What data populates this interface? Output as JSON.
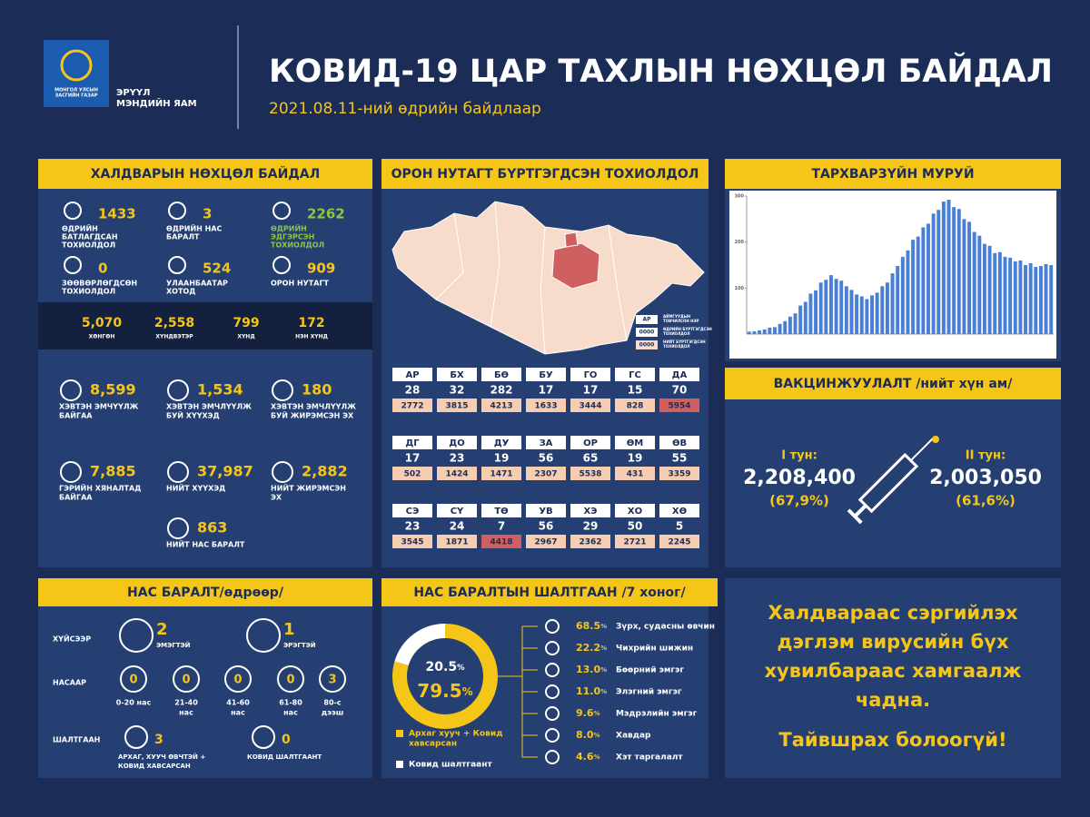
{
  "header": {
    "logo_text": [
      "МОНГОЛ УЛСЫН",
      "ЗАСГИЙН ГАЗАР"
    ],
    "ministry": [
      "ЭРҮҮЛ",
      "МЭНДИЙН ЯАМ"
    ],
    "title": "КОВИД-19 ЦАР ТАХЛЫН НӨХЦӨЛ БАЙДАЛ",
    "subtitle": "2021.08.11-ний өдрийн байдлаар"
  },
  "infection": {
    "title": "ХАЛДВАРЫН НӨХЦӨЛ БАЙДАЛ",
    "daily": [
      {
        "value": "1433",
        "label": [
          "ӨДРИЙН",
          "БАТЛАГДСАН",
          "ТОХИОЛДОЛ"
        ],
        "color": "#f5c518",
        "label_color": "#ffffff"
      },
      {
        "value": "3",
        "label": [
          "ӨДРИЙН НАС",
          "БАРАЛТ"
        ],
        "color": "#f5c518",
        "label_color": "#ffffff"
      },
      {
        "value": "2262",
        "label": [
          "ӨДРИЙН",
          "ЭДГЭРСЭН",
          "ТОХИОЛДОЛ"
        ],
        "color": "#8dc63f",
        "label_color": "#8dc63f"
      },
      {
        "value": "0",
        "label": [
          "ЗӨӨВӨРЛӨГДСӨН",
          "ТОХИОЛДОЛ"
        ],
        "color": "#f5c518",
        "label_color": "#ffffff"
      },
      {
        "value": "524",
        "label": [
          "УЛААНБААТАР",
          "ХОТОД"
        ],
        "color": "#f5c518",
        "label_color": "#ffffff"
      },
      {
        "value": "909",
        "label": [
          "ОРОН НУТАГТ"
        ],
        "color": "#f5c518",
        "label_color": "#ffffff"
      }
    ],
    "severity": [
      {
        "value": "5,070",
        "label": "ХӨНГӨН"
      },
      {
        "value": "2,558",
        "label": "ХҮНДВЭТЭР"
      },
      {
        "value": "799",
        "label": "ХҮНД"
      },
      {
        "value": "172",
        "label": "НЭН ХҮНД"
      }
    ],
    "care": [
      {
        "value": "8,599",
        "label": [
          "ХЭВТЭН ЭМЧҮҮЛЖ",
          "БАЙГАА"
        ]
      },
      {
        "value": "1,534",
        "label": [
          "ХЭВТЭН ЭМЧЛҮҮЛЖ",
          "БУЙ ХҮҮХЭД"
        ]
      },
      {
        "value": "180",
        "label": [
          "ХЭВТЭН ЭМЧЛҮҮЛЖ",
          "БУЙ ЖИРЭМСЭН ЭХ"
        ]
      },
      {
        "value": "7,885",
        "label": [
          "ГЭРИЙН ХЯНАЛТАД",
          "БАЙГАА"
        ]
      },
      {
        "value": "37,987",
        "label": [
          "НИЙТ ХҮҮХЭД"
        ]
      },
      {
        "value": "2,882",
        "label": [
          "НИЙТ ЖИРЭМСЭН",
          "ЭХ"
        ]
      },
      {
        "value": "863",
        "label": [
          "НИЙТ НАС БАРАЛТ"
        ]
      }
    ]
  },
  "regions": {
    "title": "ОРОН НУТАГТ БҮРТГЭГДСЭН ТОХИОЛДОЛ",
    "legend": [
      {
        "text": "АР",
        "label": [
          "АЙМГУУДЫН",
          "ТОВЧИЛСОН НЭР"
        ]
      },
      {
        "text": "0000",
        "label": [
          "ӨДРИЙН БҮРТГЭГДСЭН",
          "ТОХИОЛДОЛ"
        ]
      },
      {
        "text": "0000",
        "label": [
          "НИЙТ БҮРТГЭГДСЭН",
          "ТОХИОЛДОЛ"
        ]
      }
    ],
    "provinces": [
      {
        "code": "АР",
        "daily": "28",
        "total": "2772",
        "highlight": false
      },
      {
        "code": "БХ",
        "daily": "32",
        "total": "3815",
        "highlight": false
      },
      {
        "code": "БӨ",
        "daily": "282",
        "total": "4213",
        "highlight": false
      },
      {
        "code": "БУ",
        "daily": "17",
        "total": "1633",
        "highlight": false
      },
      {
        "code": "ГО",
        "daily": "17",
        "total": "3444",
        "highlight": false
      },
      {
        "code": "ГС",
        "daily": "15",
        "total": "828",
        "highlight": false
      },
      {
        "code": "ДА",
        "daily": "70",
        "total": "5954",
        "highlight": true
      },
      {
        "code": "ДГ",
        "daily": "17",
        "total": "502",
        "highlight": false
      },
      {
        "code": "ДО",
        "daily": "23",
        "total": "1424",
        "highlight": false
      },
      {
        "code": "ДУ",
        "daily": "19",
        "total": "1471",
        "highlight": false
      },
      {
        "code": "ЗА",
        "daily": "56",
        "total": "2307",
        "highlight": false
      },
      {
        "code": "ОР",
        "daily": "65",
        "total": "5538",
        "highlight": false
      },
      {
        "code": "ӨМ",
        "daily": "19",
        "total": "431",
        "highlight": false
      },
      {
        "code": "ӨВ",
        "daily": "55",
        "total": "3359",
        "highlight": false
      },
      {
        "code": "СЭ",
        "daily": "23",
        "total": "3545",
        "highlight": false
      },
      {
        "code": "СҮ",
        "daily": "24",
        "total": "1871",
        "highlight": false
      },
      {
        "code": "ТӨ",
        "daily": "7",
        "total": "4418",
        "highlight": true
      },
      {
        "code": "УВ",
        "daily": "56",
        "total": "2967",
        "highlight": false
      },
      {
        "code": "ХЭ",
        "daily": "29",
        "total": "2362",
        "highlight": false
      },
      {
        "code": "ХО",
        "daily": "50",
        "total": "2721",
        "highlight": false
      },
      {
        "code": "ХӨ",
        "daily": "5",
        "total": "2245",
        "highlight": false
      }
    ]
  },
  "epi_curve": {
    "title": "ТАРХВАРЗҮЙН МУРУЙ",
    "color": "#4a7fd8",
    "ylim": [
      0,
      300
    ],
    "yticks": [
      100,
      200,
      300
    ],
    "values": [
      5,
      6,
      8,
      10,
      14,
      15,
      22,
      28,
      38,
      45,
      62,
      70,
      88,
      95,
      112,
      118,
      128,
      120,
      116,
      104,
      96,
      86,
      82,
      76,
      84,
      90,
      104,
      112,
      132,
      148,
      168,
      182,
      205,
      212,
      232,
      240,
      262,
      270,
      288,
      292,
      276,
      272,
      250,
      244,
      222,
      214,
      196,
      192,
      176,
      178,
      168,
      166,
      158,
      160,
      150,
      154,
      146,
      148,
      152,
      150
    ]
  },
  "vaccination": {
    "title": "ВАКЦИНЖУУЛАЛТ /нийт хүн ам/",
    "doses": [
      {
        "label": "I тун:",
        "value": "2,208,400",
        "percent": "(67,9%)"
      },
      {
        "label": "II тун:",
        "value": "2,003,050",
        "percent": "(61,6%)"
      }
    ]
  },
  "deaths": {
    "title": "НАС БАРАЛТ/өдрөөр/",
    "sex": {
      "label": "ХҮЙСЭЭР",
      "items": [
        {
          "value": "2",
          "label": [
            "ЭМЭГТЭЙ"
          ]
        },
        {
          "value": "1",
          "label": [
            "ЭРЭГТЭЙ"
          ]
        }
      ]
    },
    "age": {
      "label": "НАСААР",
      "items": [
        {
          "value": "0",
          "label": [
            "0-20 нас"
          ]
        },
        {
          "value": "0",
          "label": [
            "21-40",
            "нас"
          ]
        },
        {
          "value": "0",
          "label": [
            "41-60",
            "нас"
          ]
        },
        {
          "value": "0",
          "label": [
            "61-80",
            "нас"
          ]
        },
        {
          "value": "3",
          "label": [
            "80-с",
            "дээш"
          ]
        }
      ]
    },
    "cause": {
      "label": "ШАЛТГААН",
      "items": [
        {
          "value": "3",
          "label": [
            "АРХАГ, ХУУЧ ӨВЧТЭЙ +",
            "КОВИД ХАВСАРСАН"
          ]
        },
        {
          "value": "0",
          "label": [
            "КОВИД ШАЛТГААНТ"
          ]
        }
      ]
    }
  },
  "causes": {
    "title": "НАС БАРАЛТЫН ШАЛТГААН /7 хоног/",
    "donut": [
      {
        "value": 79.5,
        "unit": "%",
        "color": "#f5c518",
        "legend": [
          "Архаг хууч + Ковид",
          "хавсарсан"
        ]
      },
      {
        "value": 20.5,
        "unit": "%",
        "color": "#ffffff",
        "legend": [
          "Ковид шалтгаант"
        ]
      }
    ],
    "diseases": [
      {
        "value": "68.5",
        "unit": "%",
        "label": "Зүрх, судасны өвчин"
      },
      {
        "value": "22.2",
        "unit": "%",
        "label": "Чихрийн шижин"
      },
      {
        "value": "13.0",
        "unit": "%",
        "label": "Бөөрний эмгэг"
      },
      {
        "value": "11.0",
        "unit": "%",
        "label": "Элэгний эмгэг"
      },
      {
        "value": "9.6",
        "unit": "%",
        "label": "Мэдрэлийн эмгэг"
      },
      {
        "value": "8.0",
        "unit": "%",
        "label": "Хавдар"
      },
      {
        "value": "4.6",
        "unit": "%",
        "label": "Хэт таргалалт"
      }
    ]
  },
  "message": {
    "lines": [
      "Халдвараас сэргийлэх",
      "дэглэм вирусийн бүх",
      "хувилбараас хамгаалж",
      "чадна."
    ],
    "slogan": "Тайвшрах болоогүй!"
  }
}
